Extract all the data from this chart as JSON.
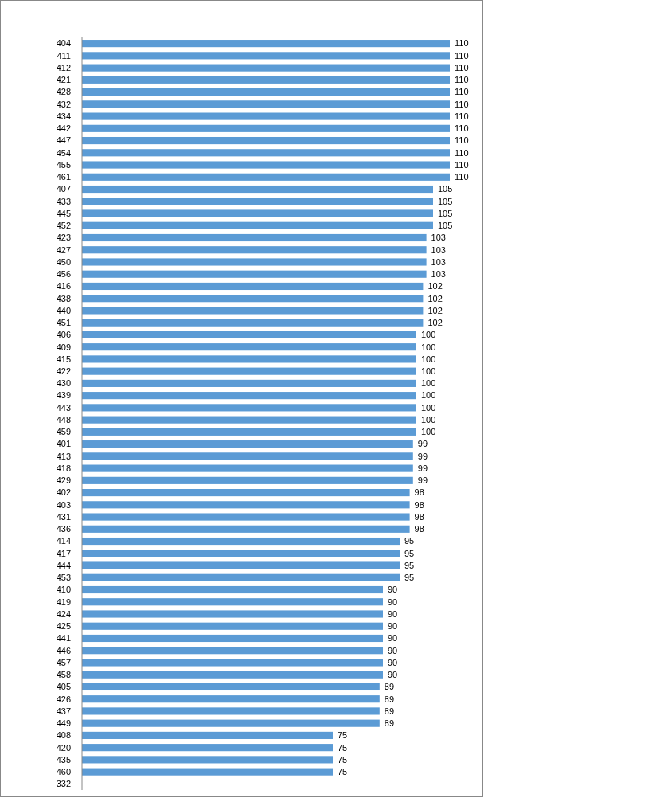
{
  "chart_data": {
    "type": "bar",
    "orientation": "horizontal",
    "categories": [
      "404",
      "411",
      "412",
      "421",
      "428",
      "432",
      "434",
      "442",
      "447",
      "454",
      "455",
      "461",
      "407",
      "433",
      "445",
      "452",
      "423",
      "427",
      "450",
      "456",
      "416",
      "438",
      "440",
      "451",
      "406",
      "409",
      "415",
      "422",
      "430",
      "439",
      "443",
      "448",
      "459",
      "401",
      "413",
      "418",
      "429",
      "402",
      "403",
      "431",
      "436",
      "414",
      "417",
      "444",
      "453",
      "410",
      "419",
      "424",
      "425",
      "441",
      "446",
      "457",
      "458",
      "405",
      "426",
      "437",
      "449",
      "408",
      "420",
      "435",
      "460",
      "332"
    ],
    "values": [
      110,
      110,
      110,
      110,
      110,
      110,
      110,
      110,
      110,
      110,
      110,
      110,
      105,
      105,
      105,
      105,
      103,
      103,
      103,
      103,
      102,
      102,
      102,
      102,
      100,
      100,
      100,
      100,
      100,
      100,
      100,
      100,
      100,
      99,
      99,
      99,
      99,
      98,
      98,
      98,
      98,
      95,
      95,
      95,
      95,
      90,
      90,
      90,
      90,
      90,
      90,
      90,
      90,
      89,
      89,
      89,
      89,
      75,
      75,
      75,
      75,
      null
    ],
    "color": "#5b9bd5",
    "data_labels": true
  }
}
